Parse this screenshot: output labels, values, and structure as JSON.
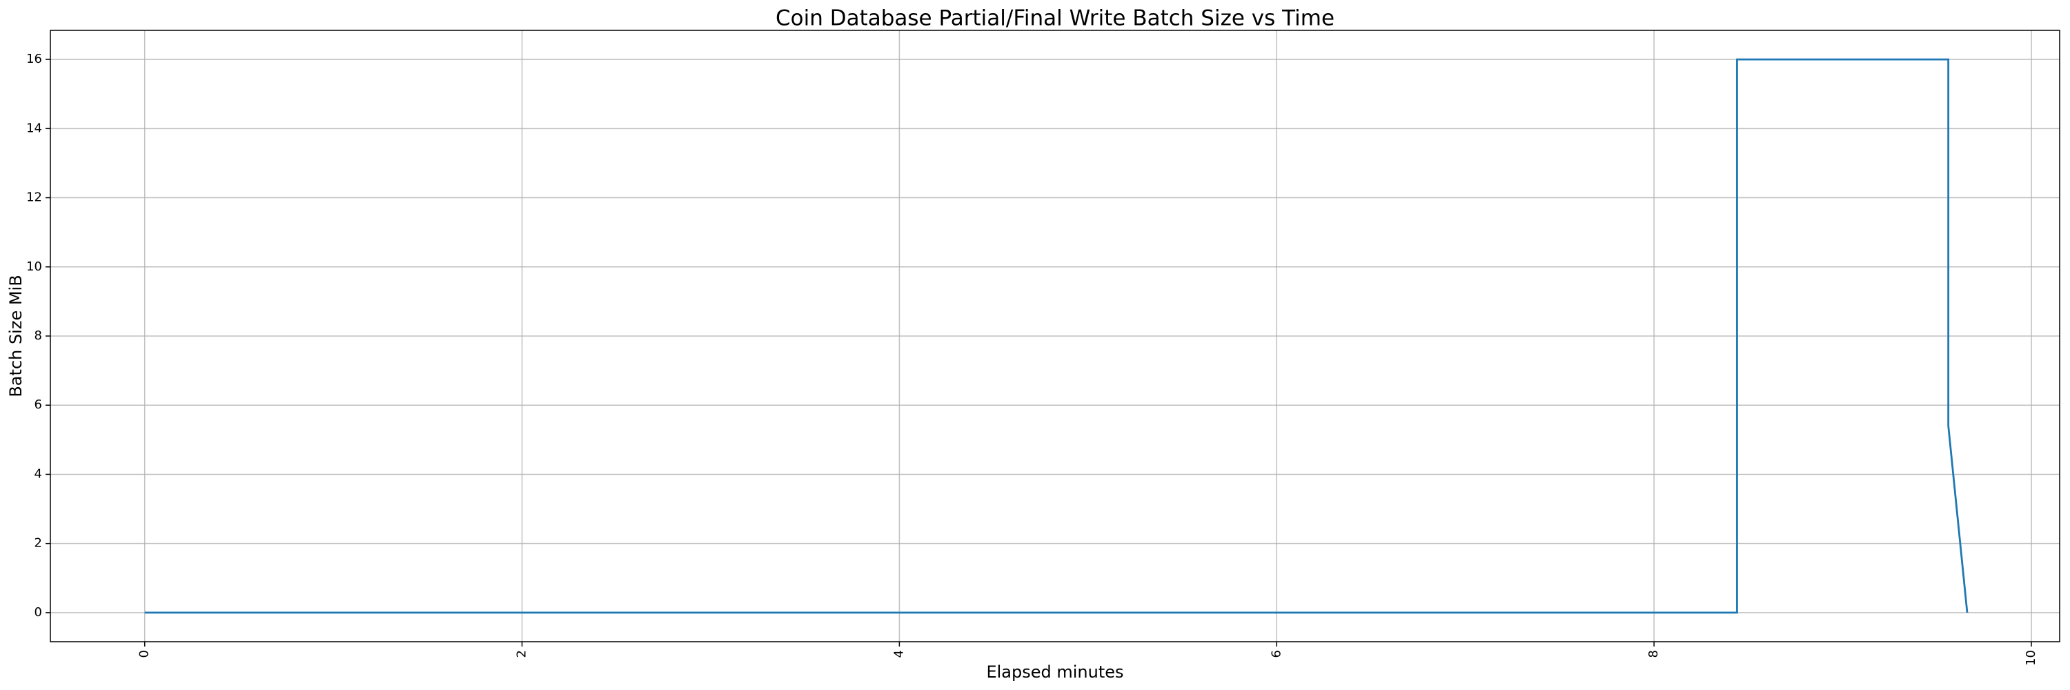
{
  "chart_data": {
    "type": "line",
    "title": "Coin Database Partial/Final Write Batch Size vs Time",
    "x_label": "Elapsed minutes",
    "y_label": "Batch Size MiB",
    "x": [
      0,
      8.44,
      8.44,
      9.56,
      9.56,
      9.66
    ],
    "series": [
      {
        "name": "Batch Size MiB",
        "color": "#1f77b4",
        "values": [
          0,
          0,
          16,
          16,
          5.4,
          0
        ]
      }
    ],
    "xlim": [
      -0.5,
      10.15
    ],
    "ylim": [
      -0.84,
      16.84
    ],
    "xticks": [
      0,
      2,
      4,
      6,
      8,
      10
    ],
    "yticks": [
      0,
      2,
      4,
      6,
      8,
      10,
      12,
      14,
      16
    ],
    "grid": true
  }
}
